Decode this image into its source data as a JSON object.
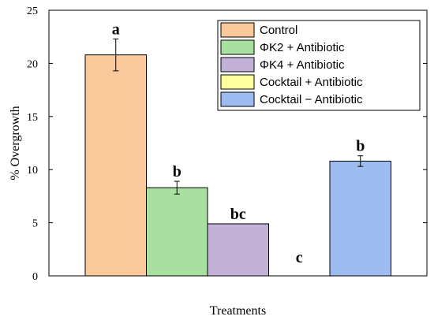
{
  "chart_data": {
    "type": "bar",
    "title": "",
    "xlabel": "Treatments",
    "ylabel": "% Overgrowth",
    "ylim": [
      0,
      25
    ],
    "yticks": [
      0,
      5,
      10,
      15,
      20,
      25
    ],
    "grid": false,
    "legend_position": "top-right",
    "series": [
      {
        "name": "Control",
        "value": 20.8,
        "error": 1.5,
        "label": "a",
        "color": "#F9C89B"
      },
      {
        "name": "ΦK2 + Antibiotic",
        "value": 8.3,
        "error": 0.6,
        "label": "b",
        "color": "#A9DFA0"
      },
      {
        "name": "ΦK4 + Antibiotic",
        "value": 4.9,
        "error": 0.0,
        "label": "bc",
        "color": "#C2B2D8"
      },
      {
        "name": "Cocktail + Antibiotic",
        "value": 0,
        "error": 0.0,
        "label": "c",
        "color": "#FFFFA0"
      },
      {
        "name": "Cocktail − Antibiotic",
        "value": 10.8,
        "error": 0.5,
        "label": "b",
        "color": "#9DBCF0"
      }
    ]
  }
}
